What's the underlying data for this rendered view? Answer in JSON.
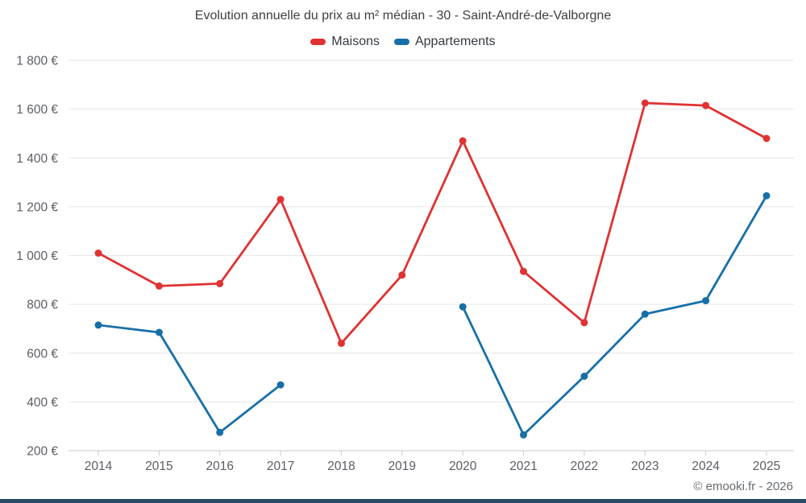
{
  "title": "Evolution annuelle du prix au m² médian - 30 - Saint-André-de-Valborgne",
  "footer": "© emooki.fr - 2026",
  "colors": {
    "bottom_bar": "#2b4a66",
    "grid": "#e6e6e6",
    "axis": "#c9c9c9"
  },
  "chart_data": {
    "type": "line",
    "title": "Evolution annuelle du prix au m² médian - 30 - Saint-André-de-Valborgne",
    "x": [
      2014,
      2015,
      2016,
      2017,
      2018,
      2019,
      2020,
      2021,
      2022,
      2023,
      2024,
      2025
    ],
    "series": [
      {
        "name": "Maisons",
        "color": "#e03232",
        "values": [
          1010,
          875,
          885,
          1230,
          640,
          920,
          1470,
          935,
          725,
          1625,
          1615,
          1480
        ]
      },
      {
        "name": "Appartements",
        "color": "#176fa8",
        "values": [
          715,
          685,
          275,
          470,
          null,
          null,
          790,
          265,
          505,
          760,
          815,
          1245
        ]
      }
    ],
    "ylim": [
      200,
      1800
    ],
    "ytick_step": 200,
    "ytick_suffix": " €",
    "xlabel": "",
    "ylabel": "",
    "grid": true,
    "legend_position": "top"
  }
}
